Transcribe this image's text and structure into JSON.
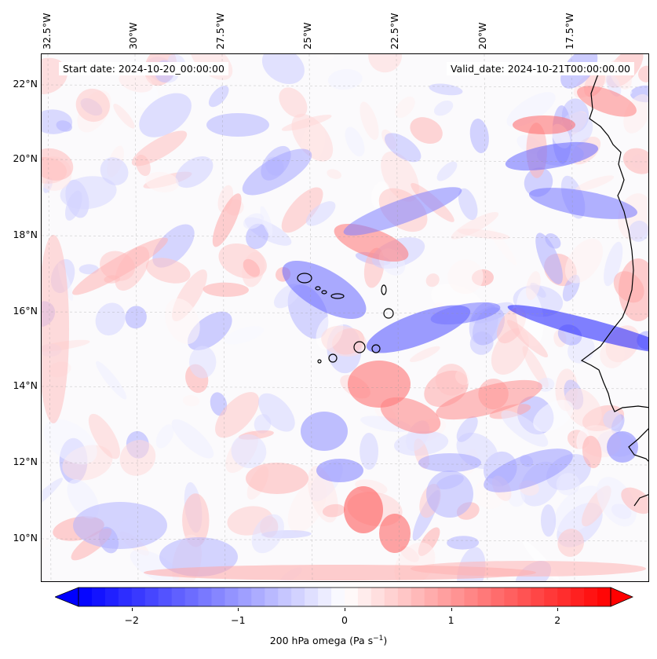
{
  "header": {
    "start_date": "Start date: 2024-10-20_00:00:00",
    "valid_date": "Valid_date: 2024-10-21T00:00:00.00"
  },
  "lon_labels": [
    "32.5°W",
    "30°W",
    "27.5°W",
    "25°W",
    "22.5°W",
    "20°W",
    "17.5°W"
  ],
  "lat_labels": [
    "22°N",
    "20°N",
    "18°N",
    "16°N",
    "14°N",
    "12°N",
    "10°N"
  ],
  "colorbar": {
    "ticks": [
      "−2",
      "−1",
      "0",
      "1",
      "2"
    ],
    "label_main": "200 hPa omega (Pa s",
    "label_sup": "−1",
    "label_end": ")",
    "range": [
      -2.5,
      2.5
    ],
    "colormap": "bwr",
    "low_color": "#0000ff",
    "mid_color": "#ffffff",
    "high_color": "#ff0000"
  },
  "map": {
    "variable": "200 hPa omega",
    "extent_lon": [
      -32.7,
      -15.8
    ],
    "extent_lat": [
      8.9,
      22.8
    ]
  }
}
